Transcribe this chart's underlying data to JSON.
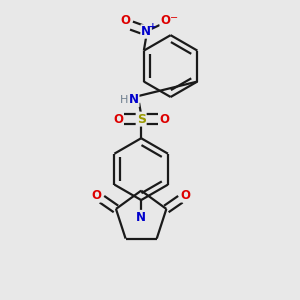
{
  "bg_color": "#e8e8e8",
  "bond_color": "#1a1a1a",
  "N_color": "#0000cc",
  "O_color": "#dd0000",
  "S_color": "#999900",
  "H_color": "#708090",
  "lw": 1.6,
  "dbo": 0.018,
  "figsize": [
    3.0,
    3.0
  ],
  "dpi": 100,
  "xlim": [
    0.0,
    1.0
  ],
  "ylim": [
    0.0,
    1.0
  ]
}
